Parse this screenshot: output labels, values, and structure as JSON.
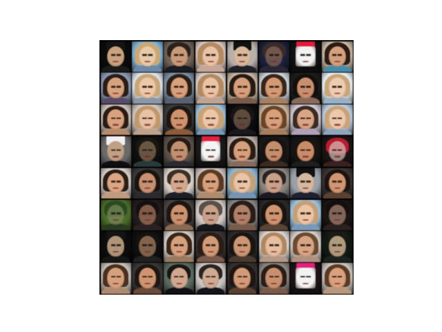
{
  "grid": {
    "rows": 8,
    "cols": 8,
    "tiles": [
      {
        "kind": "hat-man",
        "bg": "#0b0b0b",
        "hair": "#141414",
        "skin": "#c8a27e",
        "cloth": "#1a1a1a"
      },
      {
        "kind": "blonde",
        "bg": "#7fb3d6",
        "hair": "#c8a877",
        "skin": "#e8c9a8",
        "cloth": "#6d88a6"
      },
      {
        "kind": "man",
        "bg": "#6e6055",
        "hair": "#2a211b",
        "skin": "#c89a7a",
        "cloth": "#1b1b22"
      },
      {
        "kind": "blonde",
        "bg": "#d9c9c2",
        "hair": "#b48a62",
        "skin": "#e9c3a5",
        "cloth": "#c7a597"
      },
      {
        "kind": "hat-man",
        "bg": "#b8b0ad",
        "hair": "#111111",
        "skin": "#d9b79a",
        "cloth": "#202028"
      },
      {
        "kind": "dark",
        "bg": "#1a2038",
        "hair": "#3a2a2a",
        "skin": "#8a6a5c",
        "cloth": "#2a2636"
      },
      {
        "kind": "red-hat",
        "bg": "#111111",
        "hair": "#e21c3b",
        "skin": "#f2f2f2",
        "cloth": "#0e0e0e"
      },
      {
        "kind": "woman",
        "bg": "#c8b8a4",
        "hair": "#2a1c14",
        "skin": "#d4a07c",
        "cloth": "#4a8ca8"
      },
      {
        "kind": "woman",
        "bg": "#8c98b4",
        "hair": "#2b1d16",
        "skin": "#d7a27e",
        "cloth": "#5a4a6a"
      },
      {
        "kind": "blonde",
        "bg": "#dde2ea",
        "hair": "#c9a678",
        "skin": "#ecc7a8",
        "cloth": "#8a97a8"
      },
      {
        "kind": "woman",
        "bg": "#7a8ca0",
        "hair": "#2a1e17",
        "skin": "#d8a07c",
        "cloth": "#5a6070"
      },
      {
        "kind": "blonde",
        "bg": "#d8cfc8",
        "hair": "#b38a63",
        "skin": "#ebc4a4",
        "cloth": "#c2a392"
      },
      {
        "kind": "woman",
        "bg": "#c8b4a2",
        "hair": "#251a14",
        "skin": "#d79f7b",
        "cloth": "#7a5a48"
      },
      {
        "kind": "woman",
        "bg": "#c6d0d8",
        "hair": "#3a2618",
        "skin": "#d39a74",
        "cloth": "#a88060"
      },
      {
        "kind": "woman",
        "bg": "#1c1c1c",
        "hair": "#140f0c",
        "skin": "#c98f6e",
        "cloth": "#8a6a58"
      },
      {
        "kind": "blonde",
        "bg": "#e6edf2",
        "hair": "#c8a57a",
        "skin": "#efccb0",
        "cloth": "#9ab0c4"
      },
      {
        "kind": "woman",
        "bg": "#c8bfb8",
        "hair": "#2a1c15",
        "skin": "#d9a27e",
        "cloth": "#b88a6a"
      },
      {
        "kind": "blonde",
        "bg": "#cfc6c0",
        "hair": "#c0986c",
        "skin": "#e9c2a3",
        "cloth": "#bfa08a"
      },
      {
        "kind": "woman",
        "bg": "#3a3a3a",
        "hair": "#1f1611",
        "skin": "#cf946e",
        "cloth": "#8a5a3a"
      },
      {
        "kind": "blonde",
        "bg": "#9cc0dc",
        "hair": "#c7a276",
        "skin": "#ecc6a6",
        "cloth": "#7a98b4"
      },
      {
        "kind": "dark",
        "bg": "#0c0c10",
        "hair": "#1a1414",
        "skin": "#7a6450",
        "cloth": "#1a1a1e"
      },
      {
        "kind": "woman",
        "bg": "#c7b09a",
        "hair": "#6a4428",
        "skin": "#d8a07a",
        "cloth": "#a87e5c"
      },
      {
        "kind": "woman",
        "bg": "#cfc7d4",
        "hair": "#3a2a20",
        "skin": "#d9a585",
        "cloth": "#b0a0b8"
      },
      {
        "kind": "blonde",
        "bg": "#b8cde0",
        "hair": "#c9a37a",
        "skin": "#edc8aa",
        "cloth": "#8ea6be"
      },
      {
        "kind": "hat-man",
        "bg": "#6a6a6a",
        "hair": "#f0f0f0",
        "skin": "#c0a084",
        "cloth": "#0f0f12"
      },
      {
        "kind": "dark",
        "bg": "#0f0f0f",
        "hair": "#1a1612",
        "skin": "#8a7258",
        "cloth": "#2a3a3a"
      },
      {
        "kind": "man",
        "bg": "#5a5048",
        "hair": "#241a14",
        "skin": "#c09070",
        "cloth": "#2a2a30"
      },
      {
        "kind": "red-hat",
        "bg": "#1a1a1a",
        "hair": "#e2223e",
        "skin": "#f4f4f4",
        "cloth": "#101010"
      },
      {
        "kind": "woman",
        "bg": "#b8aca4",
        "hair": "#2a1d16",
        "skin": "#d7a07c",
        "cloth": "#8a6a5a"
      },
      {
        "kind": "woman",
        "bg": "#1a1a1a",
        "hair": "#181210",
        "skin": "#c48e6c",
        "cloth": "#3a2a22"
      },
      {
        "kind": "woman",
        "bg": "#141414",
        "hair": "#1a1410",
        "skin": "#c98c68",
        "cloth": "#1e1e1e"
      },
      {
        "kind": "dark",
        "bg": "#1c1414",
        "hair": "#b81c30",
        "skin": "#d6c0b8",
        "cloth": "#3a2020"
      },
      {
        "kind": "woman",
        "bg": "#d4ccc6",
        "hair": "#2a1d16",
        "skin": "#dca684",
        "cloth": "#c29a80"
      },
      {
        "kind": "woman",
        "bg": "#3a3838",
        "hair": "#1a1410",
        "skin": "#c89070",
        "cloth": "#2a2a2e"
      },
      {
        "kind": "man",
        "bg": "#d8d0c8",
        "hair": "#3a3028",
        "skin": "#d4a88c",
        "cloth": "#1e1e26"
      },
      {
        "kind": "woman",
        "bg": "#c8c0bc",
        "hair": "#5a3a22",
        "skin": "#d8a07c",
        "cloth": "#b08a6c"
      },
      {
        "kind": "blonde",
        "bg": "#8ab8d8",
        "hair": "#c3a07a",
        "skin": "#eac4a6",
        "cloth": "#7894b0"
      },
      {
        "kind": "man",
        "bg": "#8a8480",
        "hair": "#2a2420",
        "skin": "#caa088",
        "cloth": "#1a1a22"
      },
      {
        "kind": "hat-man",
        "bg": "#9aa0a8",
        "hair": "#111111",
        "skin": "#d6b8a0",
        "cloth": "#202030"
      },
      {
        "kind": "woman",
        "bg": "#3a3434",
        "hair": "#1c1410",
        "skin": "#d09672",
        "cloth": "#5a4030"
      },
      {
        "kind": "dark",
        "bg": "#4a6a2a",
        "hair": "#2a4a20",
        "skin": "#7a8a5a",
        "cloth": "#2a3a20"
      },
      {
        "kind": "dark",
        "bg": "#241c1c",
        "hair": "#141010",
        "skin": "#b07c60",
        "cloth": "#2a2222"
      },
      {
        "kind": "woman",
        "bg": "#4a4442",
        "hair": "#1e1612",
        "skin": "#cc9270",
        "cloth": "#8a6a50"
      },
      {
        "kind": "man",
        "bg": "#d0c8c4",
        "hair": "#5a5048",
        "skin": "#caa08a",
        "cloth": "#16161c"
      },
      {
        "kind": "woman",
        "bg": "#8a8888",
        "hair": "#2a1c16",
        "skin": "#b08068",
        "cloth": "#7a5a4a"
      },
      {
        "kind": "woman",
        "bg": "#2a2a2a",
        "hair": "#1a1410",
        "skin": "#d09470",
        "cloth": "#5a4434"
      },
      {
        "kind": "blonde",
        "bg": "#9cc4e0",
        "hair": "#c4a07a",
        "skin": "#ecc4a4",
        "cloth": "#7a98b8"
      },
      {
        "kind": "dark",
        "bg": "#1a1414",
        "hair": "#140e0e",
        "skin": "#b08a7a",
        "cloth": "#2a2020"
      },
      {
        "kind": "hat-man",
        "bg": "#0c0c0c",
        "hair": "#141414",
        "skin": "#b09478",
        "cloth": "#161616"
      },
      {
        "kind": "dark",
        "bg": "#0e0e0e",
        "hair": "#161210",
        "skin": "#b08868",
        "cloth": "#202020"
      },
      {
        "kind": "woman",
        "bg": "#d0c8c2",
        "hair": "#3a2618",
        "skin": "#d6a07c",
        "cloth": "#9a7a60"
      },
      {
        "kind": "woman",
        "bg": "#3a3434",
        "hair": "#2a1c16",
        "skin": "#d29a76",
        "cloth": "#7a5a4a"
      },
      {
        "kind": "woman",
        "bg": "#2a2a2a",
        "hair": "#1c1410",
        "skin": "#cc9674",
        "cloth": "#4a3a30"
      },
      {
        "kind": "blonde",
        "bg": "#d8d2ce",
        "hair": "#b0875e",
        "skin": "#e6bea0",
        "cloth": "#b49886"
      },
      {
        "kind": "woman",
        "bg": "#d2cac6",
        "hair": "#6a4a30",
        "skin": "#d8a584",
        "cloth": "#b09080"
      },
      {
        "kind": "hat-man",
        "bg": "#121812",
        "hair": "#1a1a16",
        "skin": "#b09a7c",
        "cloth": "#1c221c"
      },
      {
        "kind": "woman",
        "bg": "#c4bcb6",
        "hair": "#4a3020",
        "skin": "#d7a07c",
        "cloth": "#b08a70"
      },
      {
        "kind": "woman",
        "bg": "#3a3636",
        "hair": "#1e1612",
        "skin": "#d09470",
        "cloth": "#6a4a38"
      },
      {
        "kind": "man",
        "bg": "#5a6a60",
        "hair": "#1a1614",
        "skin": "#d0a890",
        "cloth": "#101016"
      },
      {
        "kind": "man",
        "bg": "#c8c4c2",
        "hair": "#2a2420",
        "skin": "#ceaa92",
        "cloth": "#14141a"
      },
      {
        "kind": "woman",
        "bg": "#343030",
        "hair": "#1e1612",
        "skin": "#d29a76",
        "cloth": "#5a4030"
      },
      {
        "kind": "woman",
        "bg": "#8a8480",
        "hair": "#2a1c16",
        "skin": "#c8906e",
        "cloth": "#7a5a48"
      },
      {
        "kind": "red-hat",
        "bg": "#1c1416",
        "hair": "#e0207a",
        "skin": "#f2f2f2",
        "cloth": "#121012"
      },
      {
        "kind": "woman",
        "bg": "#c8c0ba",
        "hair": "#5a3a24",
        "skin": "#d8a07c",
        "cloth": "#b8987c"
      }
    ]
  }
}
